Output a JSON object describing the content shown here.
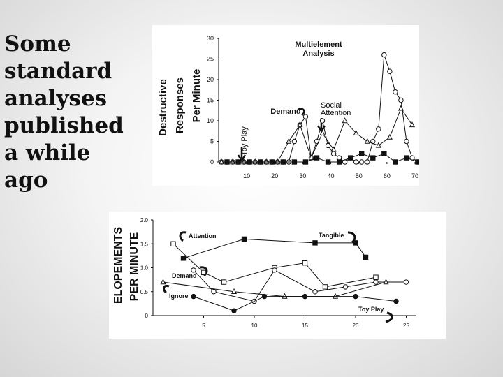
{
  "slide": {
    "title_lines": [
      "Some",
      "standard",
      "analyses",
      "published",
      "a while",
      "ago"
    ]
  },
  "chart_data": [
    {
      "type": "line",
      "ylabel": [
        "Destructive",
        "Responses",
        "Per Minute"
      ],
      "xlim": [
        0,
        71
      ],
      "ylim": [
        0,
        30
      ],
      "xticks": [
        10,
        20,
        30,
        40,
        50,
        60,
        70
      ],
      "yticks": [
        0,
        5,
        10,
        15,
        20,
        25,
        30
      ],
      "grid": false,
      "annotations": [
        "Multielement",
        "Analysis",
        "Demand",
        "Social",
        "Attention",
        "Toy Play"
      ],
      "series": [
        {
          "marker": "open-circle",
          "x": [
            1,
            3,
            5,
            7,
            9,
            11,
            13,
            15,
            17,
            19,
            21,
            23,
            25,
            27,
            29,
            31,
            33,
            35,
            37,
            39,
            41,
            43,
            45,
            47,
            49,
            51,
            53,
            55,
            57,
            59,
            61,
            63,
            65,
            67,
            69,
            71
          ],
          "y": [
            0,
            0,
            0,
            0,
            0,
            0,
            0,
            0,
            0,
            0,
            0,
            0,
            0,
            5,
            9,
            11,
            1,
            5,
            10,
            4,
            2,
            1,
            0,
            1,
            0,
            0,
            0,
            5,
            8,
            26,
            22,
            17,
            15,
            5,
            1,
            0
          ]
        },
        {
          "marker": "open-triangle",
          "x": [
            1,
            5,
            9,
            13,
            17,
            21,
            25,
            29,
            33,
            37,
            41,
            45,
            49,
            53,
            57,
            61,
            65,
            69
          ],
          "y": [
            0,
            0,
            0,
            0,
            0,
            0,
            5,
            9,
            1,
            7,
            3,
            10,
            7,
            5,
            4,
            6,
            13,
            9
          ]
        },
        {
          "marker": "filled-square",
          "x": [
            3,
            7,
            11,
            15,
            19,
            23,
            27,
            31,
            35,
            39,
            43,
            47,
            51,
            55,
            59,
            63,
            67,
            71
          ],
          "y": [
            0,
            0,
            0,
            0,
            0,
            0,
            0,
            0,
            1,
            0,
            0,
            1,
            2,
            1,
            2,
            0,
            1,
            0
          ]
        }
      ]
    },
    {
      "type": "line",
      "ylabel": [
        "ELOPEMENTS",
        "PER MINUTE"
      ],
      "xlim": [
        0,
        26
      ],
      "ylim": [
        0,
        2.0
      ],
      "xticks": [
        5,
        10,
        15,
        20,
        25
      ],
      "yticks": [
        0,
        0.5,
        1.0,
        1.5,
        2.0
      ],
      "ytick_labels": [
        "0",
        "0.5",
        "1.0",
        "1.5",
        "2.0"
      ],
      "grid": false,
      "series": [
        {
          "name": "Attention",
          "marker": "open-square",
          "x": [
            2,
            5,
            7,
            12,
            15,
            17,
            22
          ],
          "y": [
            1.5,
            0.9,
            0.7,
            1.0,
            1.1,
            0.6,
            0.8
          ]
        },
        {
          "name": "Tangible",
          "marker": "filled-square",
          "x": [
            3,
            9,
            16,
            20,
            21
          ],
          "y": [
            1.2,
            1.6,
            1.52,
            1.52,
            1.22
          ]
        },
        {
          "name": "Demand",
          "marker": "open-circle",
          "x": [
            4,
            6,
            10,
            12,
            16,
            19,
            22,
            25
          ],
          "y": [
            0.95,
            0.5,
            0.3,
            0.95,
            0.5,
            0.6,
            0.7,
            0.7
          ]
        },
        {
          "name": "Ignore",
          "marker": "open-triangle",
          "x": [
            1,
            8,
            13,
            18,
            23
          ],
          "y": [
            0.7,
            0.5,
            0.4,
            0.4,
            0.7
          ]
        },
        {
          "name": "Toy Play",
          "marker": "filled-circle",
          "x": [
            4,
            8,
            11,
            15,
            20,
            24
          ],
          "y": [
            0.4,
            0.1,
            0.4,
            0.4,
            0.4,
            0.3
          ]
        }
      ]
    }
  ]
}
